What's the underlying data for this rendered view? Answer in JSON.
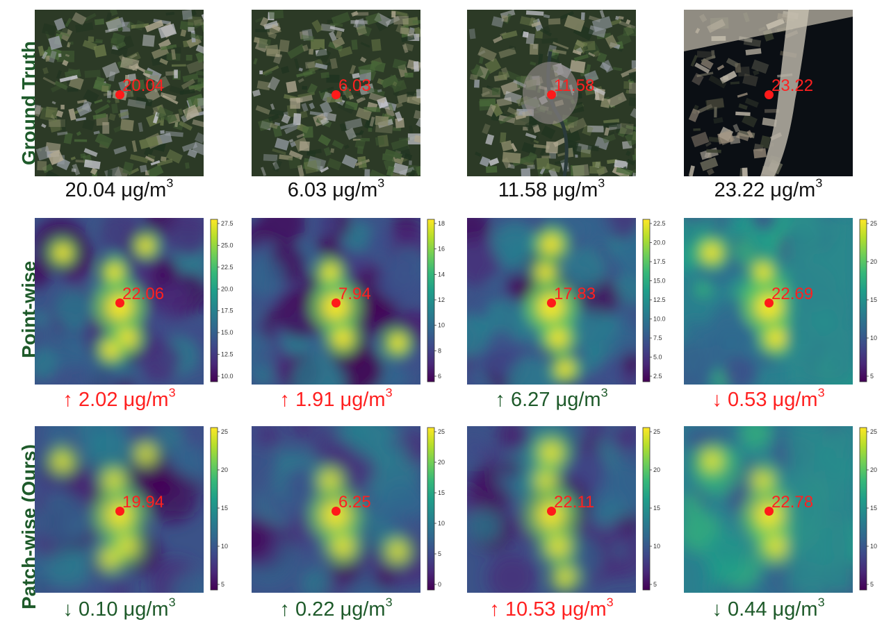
{
  "row_labels": [
    "Ground Truth",
    "Point-wise",
    "Patch-wise (Ours)"
  ],
  "unit": "μg/m",
  "unit_sup": "3",
  "colors": {
    "label_green": "#1e5a2a",
    "red": "#ff2020",
    "green": "#1e5a2a"
  },
  "rows": [
    {
      "cells": [
        {
          "point": "20.04",
          "caption": "20.04 ",
          "arrow": "",
          "color": "black"
        },
        {
          "point": "6.03",
          "caption": "6.03 ",
          "arrow": "",
          "color": "black"
        },
        {
          "point": "11.58",
          "caption": "11.58 ",
          "arrow": "",
          "color": "black"
        },
        {
          "point": "23.22",
          "caption": "23.22 ",
          "arrow": "",
          "color": "black"
        }
      ]
    },
    {
      "cells": [
        {
          "point": "22.06",
          "caption": "2.02 ",
          "arrow": "↑ ",
          "color": "red",
          "ticks": [
            "27.5",
            "25.0",
            "22.5",
            "20.0",
            "17.5",
            "15.0",
            "12.5",
            "10.0"
          ]
        },
        {
          "point": "7.94",
          "caption": "1.91 ",
          "arrow": "↑ ",
          "color": "red",
          "ticks": [
            "18",
            "16",
            "14",
            "12",
            "10",
            "8",
            "6"
          ]
        },
        {
          "point": "17.83",
          "caption": "6.27 ",
          "arrow": "↑ ",
          "color": "green",
          "ticks": [
            "22.5",
            "20.0",
            "17.5",
            "15.0",
            "12.5",
            "10.0",
            "7.5",
            "5.0",
            "2.5"
          ]
        },
        {
          "point": "22.69",
          "caption": "0.53 ",
          "arrow": "↓ ",
          "color": "red",
          "ticks": [
            "25",
            "20",
            "15",
            "10",
            "5"
          ]
        }
      ]
    },
    {
      "cells": [
        {
          "point": "19.94",
          "caption": "0.10 ",
          "arrow": "↓ ",
          "color": "green",
          "ticks": [
            "25",
            "20",
            "15",
            "10",
            "5"
          ]
        },
        {
          "point": "6.25",
          "caption": "0.22 ",
          "arrow": "↑ ",
          "color": "green",
          "ticks": [
            "25",
            "20",
            "15",
            "10",
            "5",
            "0"
          ]
        },
        {
          "point": "22.11",
          "caption": "10.53 ",
          "arrow": "↑ ",
          "color": "red",
          "ticks": [
            "25",
            "20",
            "15",
            "10",
            "5"
          ]
        },
        {
          "point": "22.78",
          "caption": "0.44 ",
          "arrow": "↓ ",
          "color": "green",
          "ticks": [
            "25",
            "20",
            "15",
            "10",
            "5"
          ]
        }
      ]
    }
  ]
}
